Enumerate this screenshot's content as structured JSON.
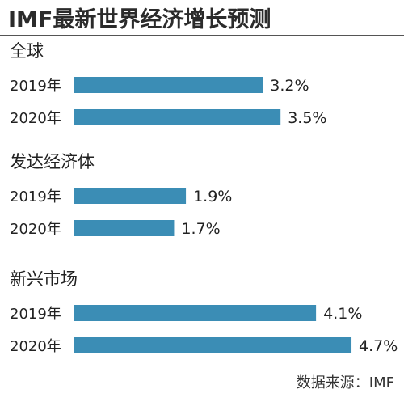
{
  "header": {
    "title": "IMF最新世界经济增长预测"
  },
  "footer": {
    "source": "数据来源：IMF"
  },
  "colors": {
    "bar": "#3b8db5",
    "text": "#222222",
    "rule": "#555555"
  },
  "chart_data": {
    "type": "bar",
    "orientation": "horizontal",
    "title": "IMF最新世界经济增长预测",
    "xlim": [
      0,
      4.9
    ],
    "grid": false,
    "legend": "none",
    "value_suffix": "%",
    "groups": [
      {
        "name": "全球",
        "items": [
          {
            "category": "2019年",
            "value": 3.2,
            "label": "3.2%"
          },
          {
            "category": "2020年",
            "value": 3.5,
            "label": "3.5%"
          }
        ]
      },
      {
        "name": "发达经济体",
        "items": [
          {
            "category": "2019年",
            "value": 1.9,
            "label": "1.9%"
          },
          {
            "category": "2020年",
            "value": 1.7,
            "label": "1.7%"
          }
        ]
      },
      {
        "name": "新兴市场",
        "items": [
          {
            "category": "2019年",
            "value": 4.1,
            "label": "4.1%"
          },
          {
            "category": "2020年",
            "value": 4.7,
            "label": "4.7%"
          }
        ]
      }
    ]
  }
}
